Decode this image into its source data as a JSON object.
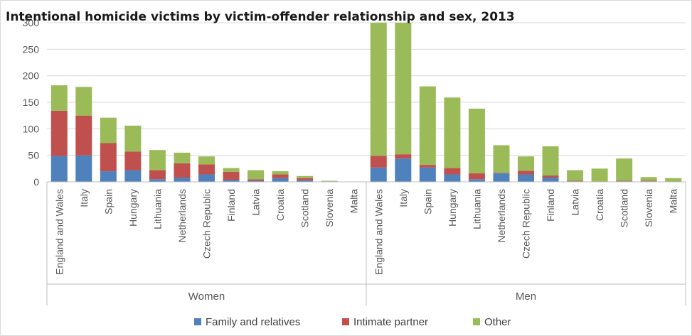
{
  "chart_data": {
    "type": "bar",
    "stacked": true,
    "title": "Intentional homicide victims by victim-offender relationship and sex, 2013",
    "xlabel": "",
    "ylabel": "",
    "ylim": [
      0,
      300
    ],
    "yticks": [
      "0",
      "50",
      "100",
      "150",
      "200",
      "250",
      "300"
    ],
    "grid": true,
    "legend_position": "bottom",
    "groups": [
      "Women",
      "Men"
    ],
    "categories": [
      "England and Wales",
      "Italy",
      "Spain",
      "Hungary",
      "Lithuania",
      "Netherlands",
      "Czech Republic",
      "Finland",
      "Latvia",
      "Croatia",
      "Scotland",
      "Slovenia",
      "Malta"
    ],
    "series": [
      {
        "name": "Family and relatives",
        "color": "#4f81bd",
        "values": {
          "Women": [
            49,
            50,
            20,
            22,
            5,
            8,
            14,
            4,
            2,
            7,
            3,
            1,
            0
          ],
          "Men": [
            27,
            44,
            27,
            14,
            5,
            16,
            14,
            8,
            1,
            0,
            1,
            1,
            0
          ]
        }
      },
      {
        "name": "Intimate partner",
        "color": "#c0504d",
        "values": {
          "Women": [
            85,
            75,
            53,
            35,
            17,
            27,
            19,
            15,
            3,
            7,
            4,
            0,
            0
          ],
          "Men": [
            22,
            8,
            5,
            12,
            11,
            1,
            7,
            4,
            1,
            0,
            1,
            1,
            0
          ]
        }
      },
      {
        "name": "Other",
        "color": "#9bbb59",
        "values": {
          "Women": [
            48,
            54,
            48,
            49,
            38,
            20,
            15,
            7,
            17,
            6,
            4,
            1,
            0
          ],
          "Men": [
            260,
            256,
            148,
            133,
            122,
            52,
            27,
            55,
            20,
            25,
            42,
            7,
            7
          ]
        }
      }
    ]
  }
}
